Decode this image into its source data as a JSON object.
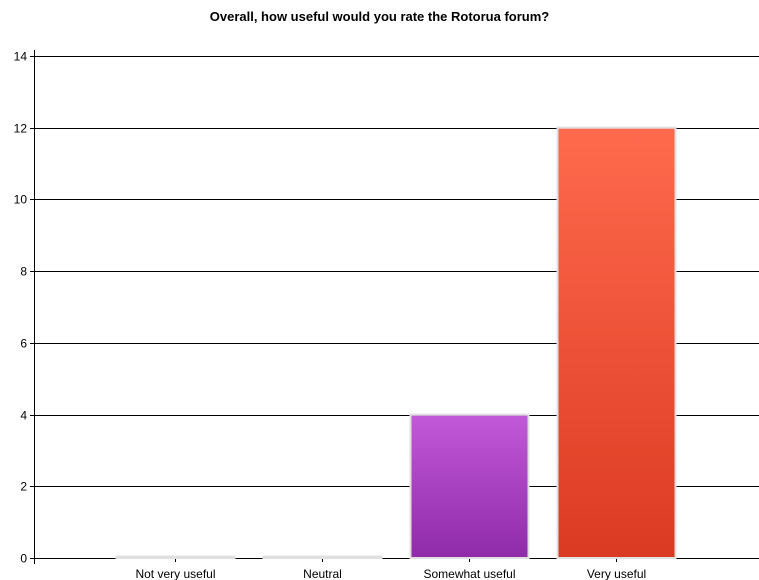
{
  "chart_data": {
    "type": "bar",
    "title": "Overall, how useful would you rate the Rotorua forum?",
    "categories": [
      "Not very useful",
      "Neutral",
      "Somewhat useful",
      "Very useful"
    ],
    "values": [
      0,
      0,
      4,
      12
    ],
    "ylim": [
      0,
      14
    ],
    "yticks": [
      0,
      2,
      4,
      6,
      8,
      10,
      12,
      14
    ],
    "grid": true,
    "legend": "none",
    "bar_colors": [
      {
        "top": "#c0c0c0",
        "bottom": "#9a9a9a"
      },
      {
        "top": "#c0c0c0",
        "bottom": "#9a9a9a"
      },
      {
        "top": "#c259d8",
        "bottom": "#8f2aa8"
      },
      {
        "top": "#ff6a4d",
        "bottom": "#db3a22"
      }
    ]
  }
}
